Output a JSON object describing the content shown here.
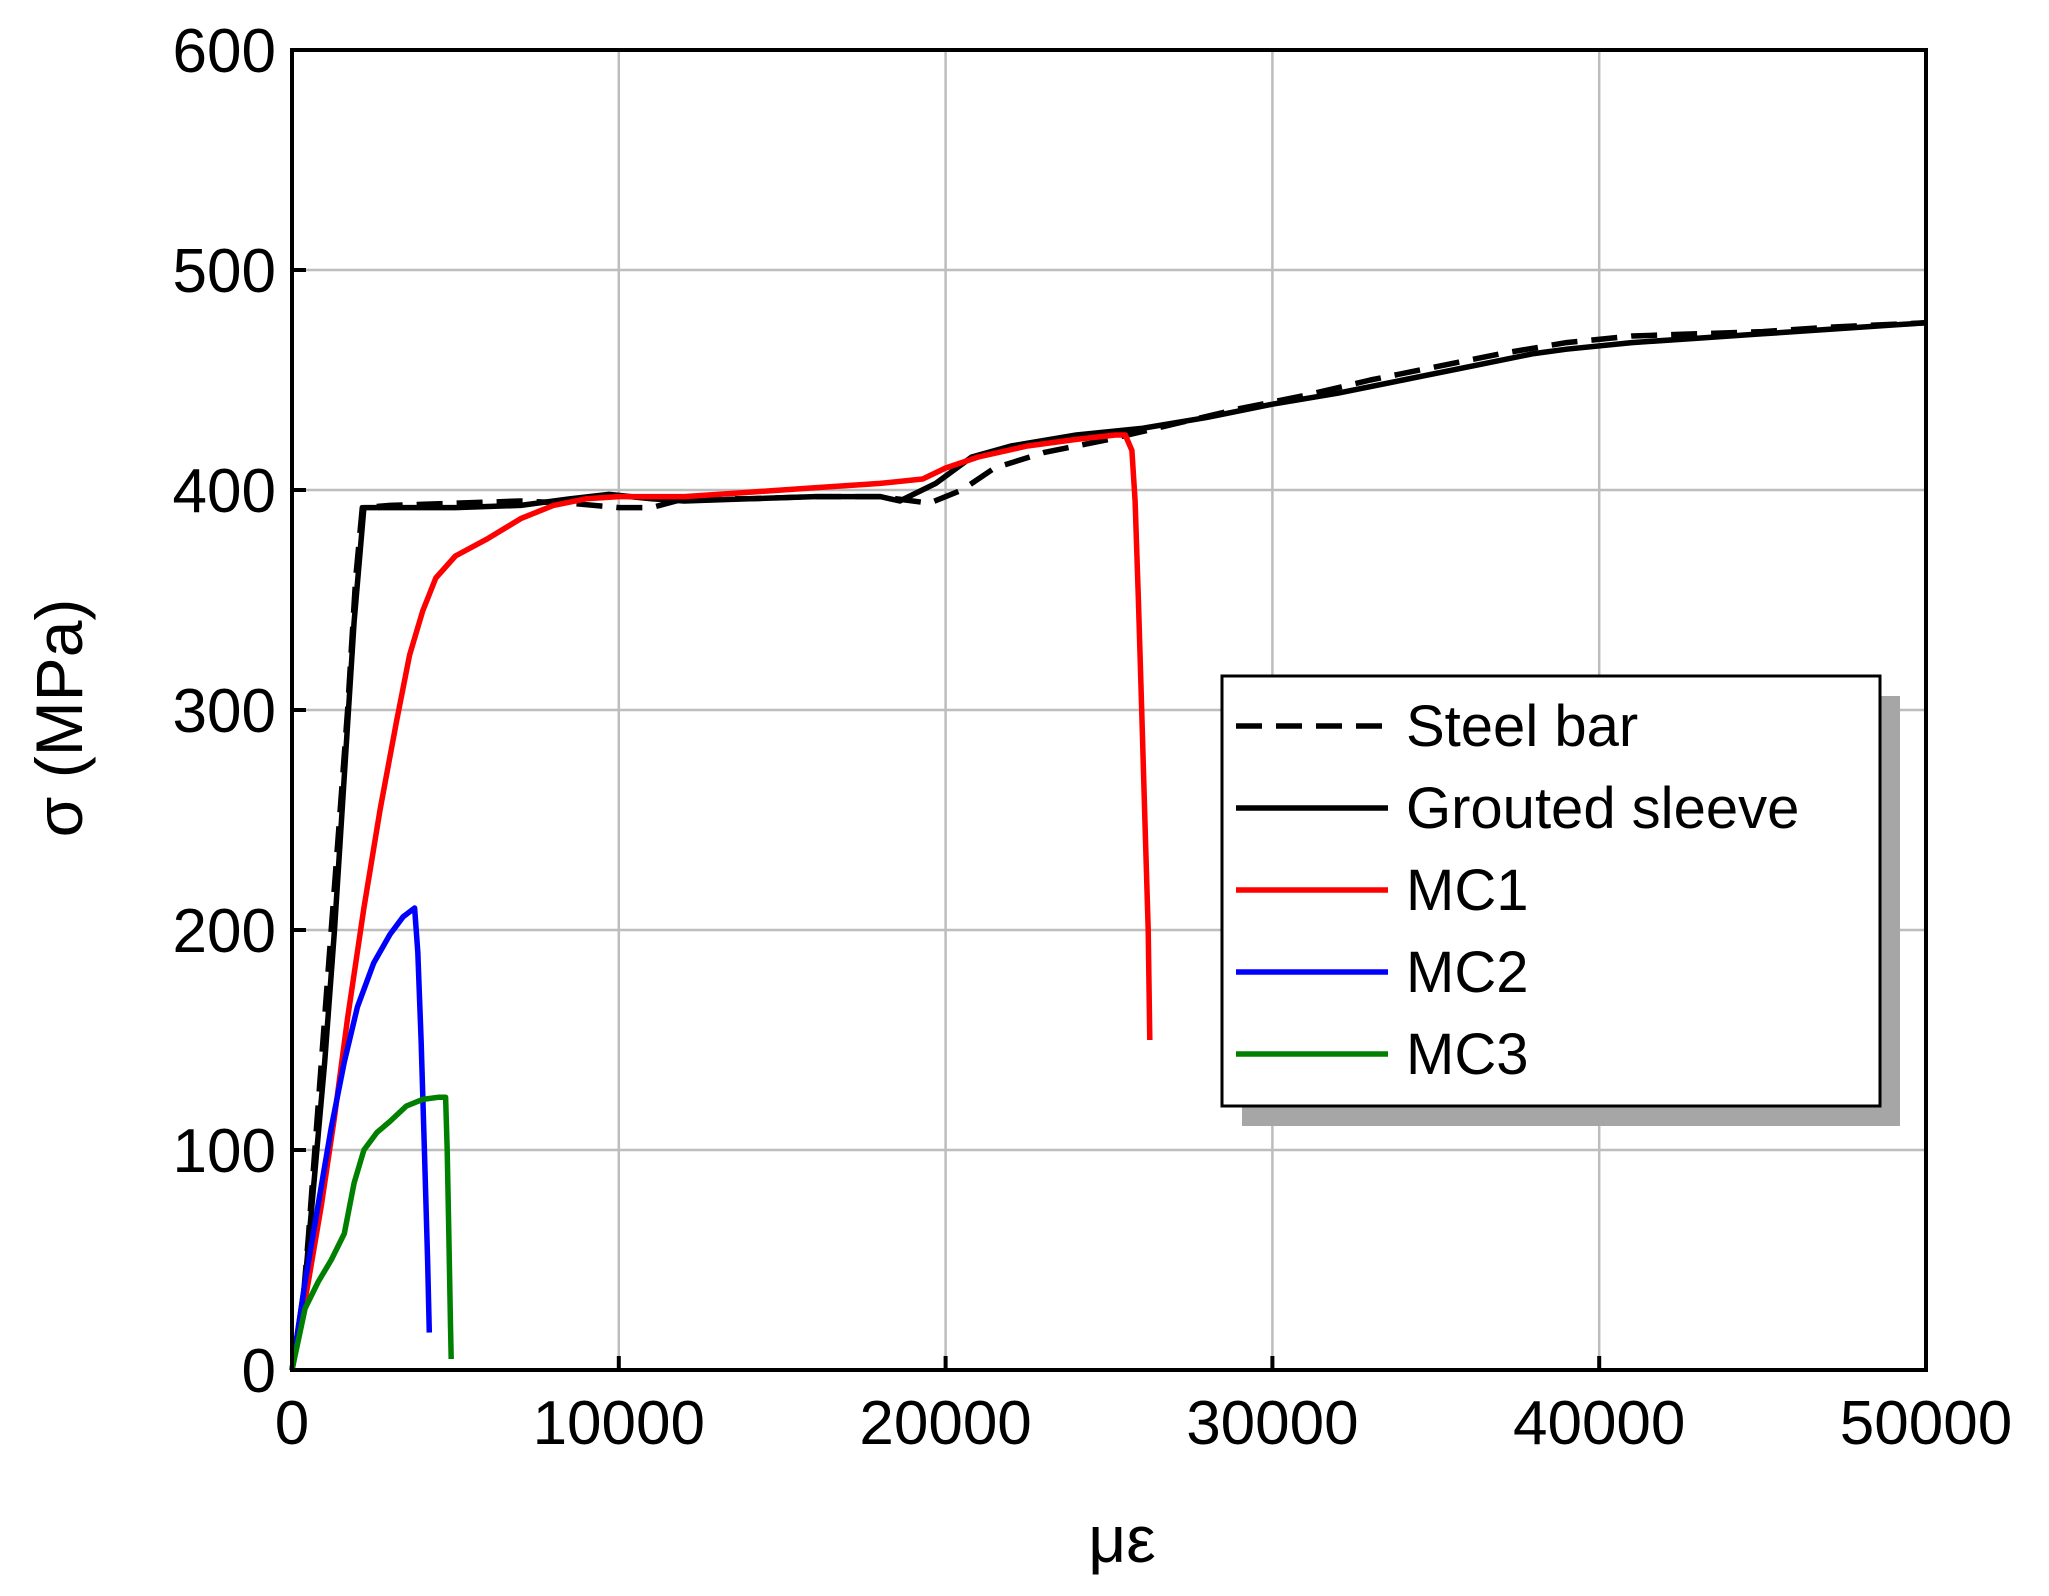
{
  "chart_data": {
    "type": "line",
    "title": "",
    "xlabel": "με",
    "ylabel": "σ (MPa)",
    "xlim": [
      0,
      50000
    ],
    "ylim": [
      0,
      600
    ],
    "x_ticks": [
      0,
      10000,
      20000,
      30000,
      40000,
      50000
    ],
    "y_ticks": [
      0,
      100,
      200,
      300,
      400,
      500,
      600
    ],
    "x_tick_labels": [
      "0",
      "10000",
      "20000",
      "30000",
      "40000",
      "50000"
    ],
    "y_tick_labels": [
      "0",
      "100",
      "200",
      "300",
      "400",
      "500",
      "600"
    ],
    "grid": true,
    "legend_position": "center-right",
    "series": [
      {
        "name": "Steel bar",
        "color": "#000000",
        "dash": "dashed",
        "points": [
          [
            0,
            0
          ],
          [
            300,
            25
          ],
          [
            500,
            60
          ],
          [
            800,
            120
          ],
          [
            1100,
            180
          ],
          [
            1400,
            240
          ],
          [
            1700,
            300
          ],
          [
            1950,
            360
          ],
          [
            2150,
            392
          ],
          [
            3000,
            393
          ],
          [
            5000,
            394
          ],
          [
            7000,
            395
          ],
          [
            8500,
            394
          ],
          [
            10000,
            392
          ],
          [
            11000,
            392
          ],
          [
            12000,
            396
          ],
          [
            14000,
            396
          ],
          [
            16000,
            397
          ],
          [
            18000,
            397
          ],
          [
            19500,
            394
          ],
          [
            20500,
            400
          ],
          [
            21500,
            410
          ],
          [
            23000,
            417
          ],
          [
            25000,
            423
          ],
          [
            27000,
            430
          ],
          [
            29000,
            437
          ],
          [
            31000,
            443
          ],
          [
            33000,
            450
          ],
          [
            35000,
            456
          ],
          [
            37000,
            462
          ],
          [
            39000,
            467
          ],
          [
            41000,
            470
          ],
          [
            43000,
            471
          ],
          [
            45000,
            472
          ],
          [
            47000,
            474
          ],
          [
            50000,
            476
          ]
        ]
      },
      {
        "name": "Grouted sleeve",
        "color": "#000000",
        "dash": "solid",
        "points": [
          [
            0,
            0
          ],
          [
            400,
            40
          ],
          [
            700,
            90
          ],
          [
            1000,
            140
          ],
          [
            1300,
            200
          ],
          [
            1600,
            270
          ],
          [
            1900,
            340
          ],
          [
            2200,
            392
          ],
          [
            3000,
            392
          ],
          [
            5000,
            392
          ],
          [
            7000,
            393
          ],
          [
            8500,
            396
          ],
          [
            9700,
            398
          ],
          [
            11000,
            396
          ],
          [
            12000,
            395
          ],
          [
            14000,
            396
          ],
          [
            16000,
            397
          ],
          [
            18000,
            397
          ],
          [
            18600,
            395
          ],
          [
            19700,
            403
          ],
          [
            20800,
            415
          ],
          [
            22000,
            420
          ],
          [
            24000,
            425
          ],
          [
            26000,
            428
          ],
          [
            28000,
            433
          ],
          [
            30000,
            439
          ],
          [
            32000,
            444
          ],
          [
            34000,
            450
          ],
          [
            36000,
            456
          ],
          [
            38000,
            462
          ],
          [
            39000,
            464
          ],
          [
            41000,
            467
          ],
          [
            43000,
            469
          ],
          [
            45000,
            471
          ],
          [
            47000,
            473
          ],
          [
            50000,
            476
          ]
        ]
      },
      {
        "name": "MC1",
        "color": "#ff0000",
        "dash": "solid",
        "points": [
          [
            0,
            0
          ],
          [
            500,
            40
          ],
          [
            900,
            75
          ],
          [
            1300,
            115
          ],
          [
            1700,
            160
          ],
          [
            2200,
            210
          ],
          [
            2700,
            255
          ],
          [
            3200,
            295
          ],
          [
            3600,
            325
          ],
          [
            4000,
            345
          ],
          [
            4400,
            360
          ],
          [
            5000,
            370
          ],
          [
            6000,
            378
          ],
          [
            7000,
            387
          ],
          [
            8000,
            393
          ],
          [
            9000,
            396
          ],
          [
            10000,
            397
          ],
          [
            12000,
            397
          ],
          [
            14000,
            399
          ],
          [
            16000,
            401
          ],
          [
            18000,
            403
          ],
          [
            19300,
            405
          ],
          [
            20000,
            410
          ],
          [
            21000,
            415
          ],
          [
            22500,
            420
          ],
          [
            24000,
            423
          ],
          [
            25200,
            425
          ],
          [
            25500,
            425
          ],
          [
            25700,
            418
          ],
          [
            25800,
            395
          ],
          [
            25900,
            350
          ],
          [
            26000,
            300
          ],
          [
            26100,
            250
          ],
          [
            26200,
            200
          ],
          [
            26250,
            150
          ]
        ]
      },
      {
        "name": "MC2",
        "color": "#0000ff",
        "dash": "solid",
        "points": [
          [
            0,
            0
          ],
          [
            400,
            40
          ],
          [
            800,
            75
          ],
          [
            1200,
            110
          ],
          [
            1600,
            140
          ],
          [
            2000,
            165
          ],
          [
            2500,
            185
          ],
          [
            3000,
            198
          ],
          [
            3400,
            206
          ],
          [
            3750,
            210
          ],
          [
            3850,
            190
          ],
          [
            3950,
            150
          ],
          [
            4050,
            100
          ],
          [
            4150,
            50
          ],
          [
            4200,
            17
          ]
        ]
      },
      {
        "name": "MC3",
        "color": "#008000",
        "dash": "solid",
        "points": [
          [
            0,
            0
          ],
          [
            400,
            28
          ],
          [
            800,
            40
          ],
          [
            1200,
            50
          ],
          [
            1600,
            62
          ],
          [
            1900,
            85
          ],
          [
            2200,
            100
          ],
          [
            2600,
            108
          ],
          [
            3000,
            113
          ],
          [
            3500,
            120
          ],
          [
            4000,
            123
          ],
          [
            4500,
            124
          ],
          [
            4700,
            124
          ],
          [
            4750,
            100
          ],
          [
            4800,
            60
          ],
          [
            4850,
            20
          ],
          [
            4870,
            5
          ]
        ]
      }
    ]
  }
}
